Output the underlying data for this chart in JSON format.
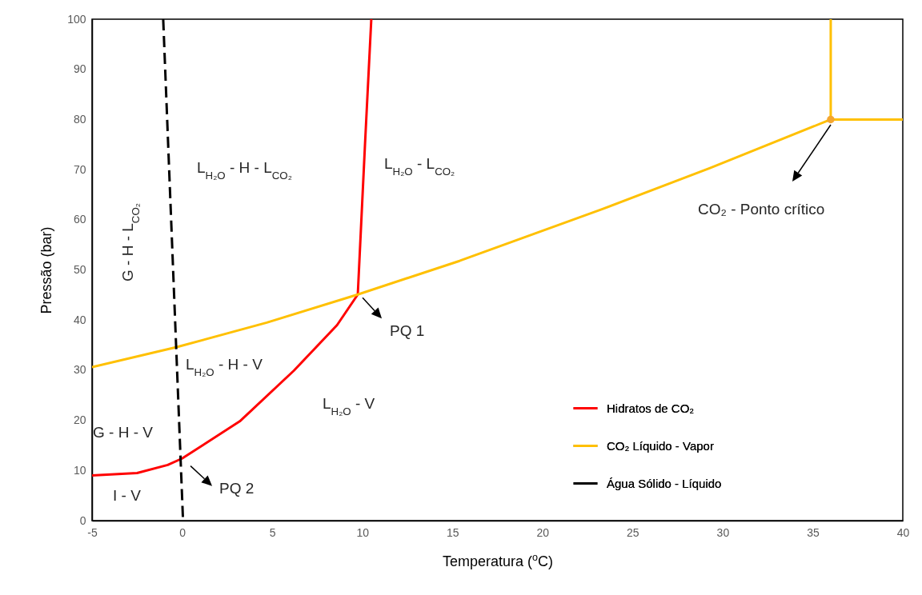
{
  "chart_data": {
    "type": "line",
    "xlabel": "Temperatura ($^{o}$C)",
    "ylabel": "Pressão (bar)",
    "xlim": [
      -5,
      40
    ],
    "xticks": [
      -5,
      0,
      5,
      10,
      15,
      20,
      25,
      30,
      35,
      40
    ],
    "ylim": [
      0,
      100
    ],
    "yticks": [
      0,
      10,
      20,
      30,
      40,
      50,
      60,
      70,
      80,
      90,
      100
    ],
    "grid": false,
    "legend": "bottom right",
    "series": [
      {
        "name": "Hidratos de CO₂",
        "color": "#ff0000",
        "x": [
          -5,
          -2.5,
          -0.8,
          0,
          3.2,
          6.2,
          8.6,
          9.75,
          10.15,
          10.5
        ],
        "values": [
          9,
          9.5,
          11.1,
          12.4,
          19.8,
          29.9,
          39,
          45.1,
          75,
          100
        ]
      },
      {
        "name": "CO₂ Líquido - Vapor",
        "color": "#ffc000",
        "x": [
          -5,
          -0.3,
          4.7,
          9.75,
          15.4,
          23.3,
          29.3,
          36,
          40
        ],
        "values": [
          30.6,
          34.6,
          39.5,
          45.1,
          51.8,
          62.1,
          70.3,
          80,
          80
        ]
      },
      {
        "color": "#ffc000",
        "x": [
          36,
          36
        ],
        "values": [
          80,
          100
        ]
      },
      {
        "name": "Água  Sólido - Líquido",
        "color": "#000000",
        "line_style": "dashed",
        "x": [
          -1.05,
          0.05
        ],
        "values": [
          100,
          0
        ]
      },
      {
        "type": "scatter",
        "color": "#f4a630",
        "marker": "circle",
        "x": [
          36
        ],
        "values": [
          80
        ]
      }
    ],
    "annotations": [
      "L$_{H₂O}$ - H - L$_{CO₂}$",
      "L$_{H₂O}$ - L$_{CO₂}$",
      "G - H - L$_{CO₂}$",
      "L$_{H₂O}$ - H - V",
      "L$_{H₂O}$ - V",
      "G - H - V",
      "I - V",
      {
        "text": "PQ 1",
        "x": 9.75,
        "y": 45.1
      },
      {
        "text": "PQ 2",
        "x": 0.2,
        "y": 12.5
      },
      "CO₂  - Ponto crítico"
    ]
  }
}
